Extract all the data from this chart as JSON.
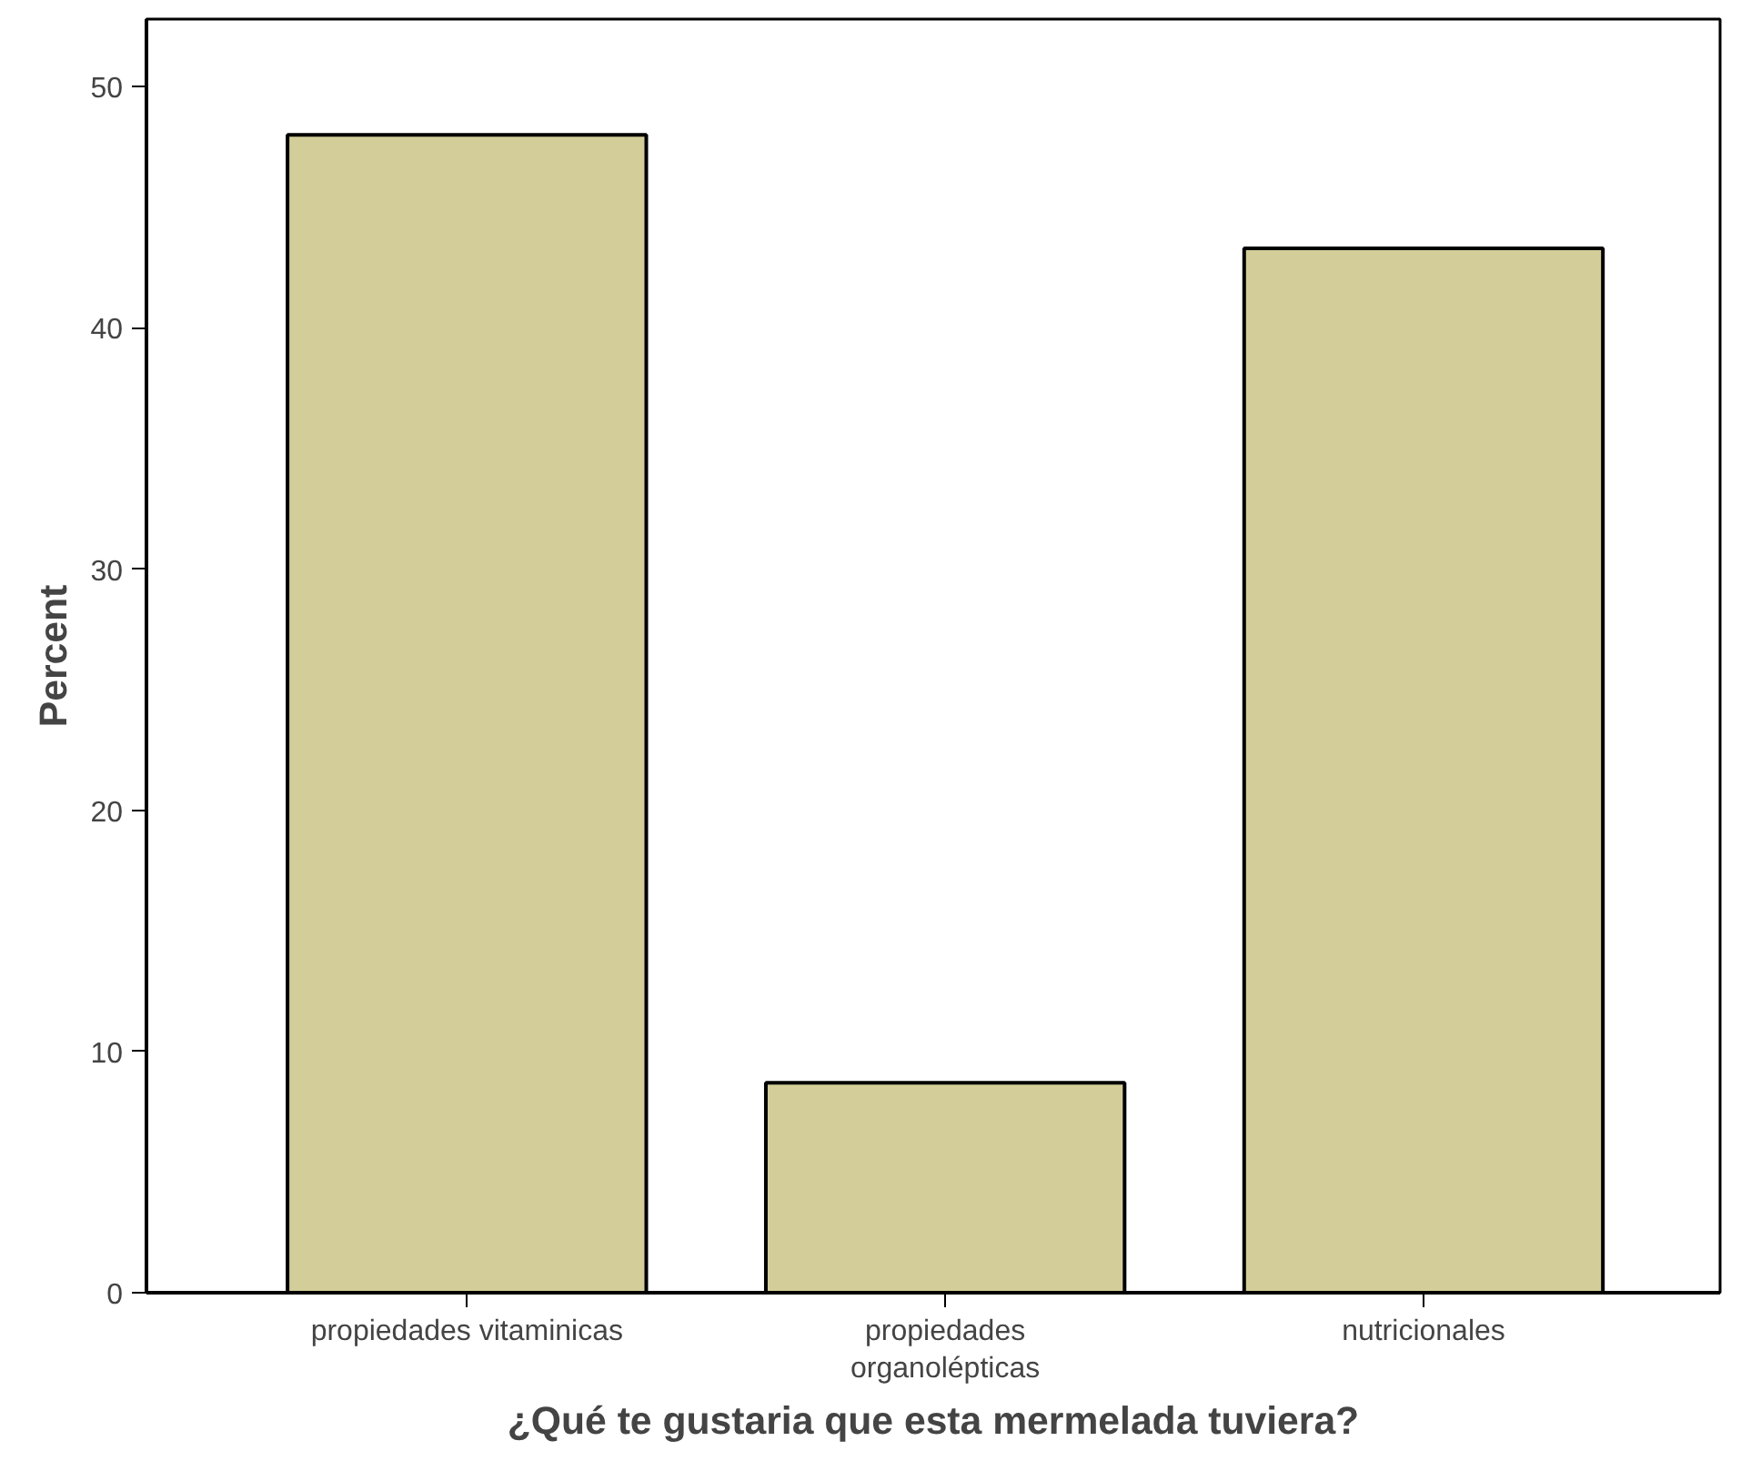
{
  "chart_data": {
    "type": "bar",
    "xlabel": "¿Qué te gustaria que esta mermelada tuviera?",
    "ylabel": "Percent",
    "categories": [
      "propiedades vitaminicas",
      "propiedades\norganolépticas",
      "nutricionales"
    ],
    "values": [
      48,
      8.7,
      43.3
    ],
    "color": "#d3ce99",
    "ylim": [
      0,
      52.8
    ],
    "yticks": [
      0,
      10,
      20,
      30,
      40,
      50
    ],
    "grid": false
  }
}
